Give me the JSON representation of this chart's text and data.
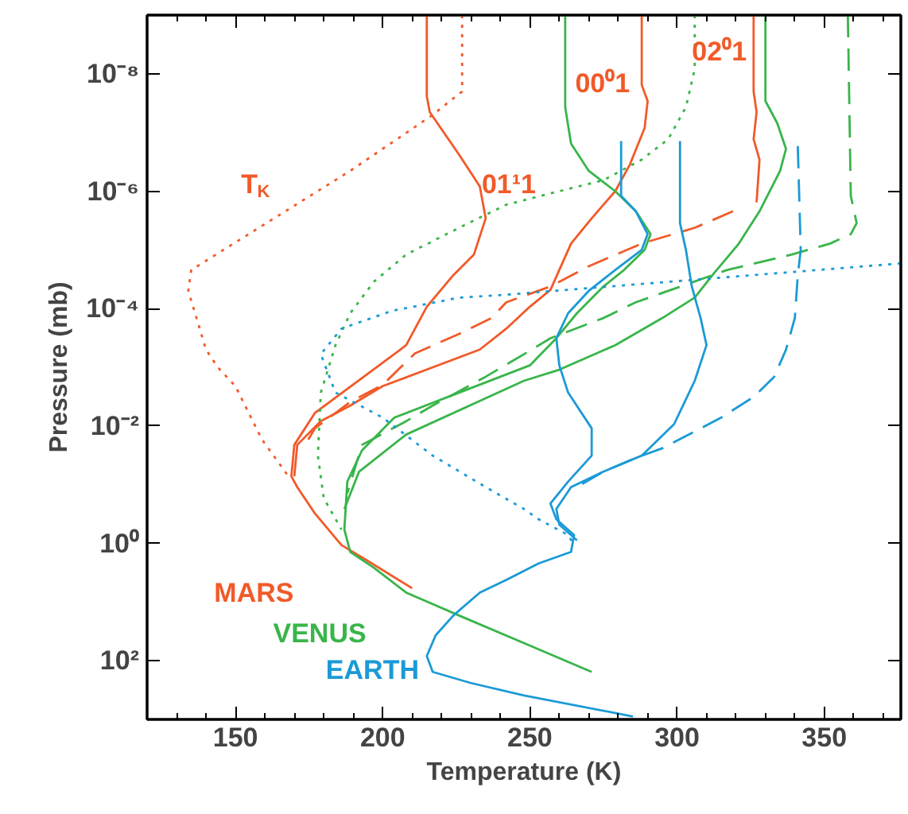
{
  "chart_data": {
    "type": "line",
    "xlabel": "Temperature (K)",
    "ylabel": "Pressure (mb)",
    "xlim": [
      120,
      376
    ],
    "xticks": [
      150,
      200,
      250,
      300,
      350
    ],
    "ylim": [
      1000,
      1e-09
    ],
    "log": "y",
    "yticks": [
      {
        "value": 1e-08,
        "label": "10⁻⁸"
      },
      {
        "value": 1e-06,
        "label": "10⁻⁶"
      },
      {
        "value": 0.0001,
        "label": "10⁻⁴"
      },
      {
        "value": 0.01,
        "label": "10⁻²"
      },
      {
        "value": 1,
        "label": "10⁰"
      },
      {
        "value": 100,
        "label": "10²"
      }
    ],
    "grid": false,
    "marker": "none",
    "series": [
      {
        "color": "#f15a29",
        "line_style": "dotted",
        "x": [
          227,
          227,
          217,
          189,
          135,
          134,
          140,
          144,
          150,
          159,
          168
        ],
        "values": [
          1e-09,
          2e-08,
          5e-08,
          4.5e-07,
          2.2e-05,
          5e-05,
          0.0005,
          0.001,
          0.0021,
          0.017,
          0.072
        ]
      },
      {
        "color": "#f15a29",
        "line_style": "solid",
        "x": [
          215,
          215,
          216,
          226,
          233,
          235,
          231,
          224,
          215,
          208,
          206,
          177,
          170,
          169,
          171,
          177,
          186,
          195,
          210
        ],
        "values": [
          1e-09,
          2.4e-08,
          4.5e-08,
          2.4e-07,
          8.3e-07,
          2.9e-06,
          1.2e-05,
          2.7e-05,
          9.3e-05,
          0.00042,
          0.0005,
          0.006,
          0.021,
          0.072,
          0.11,
          0.31,
          1.07,
          2.0,
          5.8
        ]
      },
      {
        "color": "#f15a29",
        "line_style": "solid",
        "x": [
          288,
          288,
          290,
          289,
          284,
          279,
          271,
          264,
          260,
          257,
          250,
          242,
          233,
          200,
          189,
          179,
          171,
          170
        ],
        "values": [
          1e-09,
          1.55e-08,
          2.9e-08,
          8.3e-08,
          3.5e-07,
          1e-06,
          2.9e-06,
          7.8e-06,
          2.2e-05,
          4.8e-05,
          9.3e-05,
          0.00022,
          0.0005,
          0.0021,
          0.0045,
          0.0083,
          0.021,
          0.072
        ]
      },
      {
        "color": "#f15a29",
        "line_style": "solid",
        "x": [
          326,
          326,
          327,
          326,
          328,
          327
        ],
        "values": [
          1e-09,
          2e-08,
          4.5e-08,
          1.3e-07,
          2.9e-07,
          1.55e-06
        ]
      },
      {
        "color": "#f15a29",
        "line_style": "dashed",
        "x": [
          319,
          306,
          288,
          270,
          257,
          242,
          237,
          226,
          211,
          200,
          189,
          177,
          173
        ],
        "values": [
          2.2e-06,
          4.2e-06,
          7.8e-06,
          1.9e-05,
          4.2e-05,
          7.8e-05,
          0.000145,
          0.00027,
          0.00058,
          0.002,
          0.0039,
          0.011,
          0.024
        ]
      },
      {
        "color": "#39b54a",
        "line_style": "solid",
        "x": [
          262,
          262,
          264,
          270,
          279,
          286,
          291,
          289,
          282,
          275,
          266,
          259,
          250,
          226,
          204,
          193,
          188,
          187,
          189,
          197,
          208,
          226,
          248,
          271
        ],
        "values": [
          1e-09,
          3.7e-08,
          1.55e-07,
          4.5e-07,
          1e-06,
          2.2e-06,
          5.4e-06,
          1e-05,
          2.2e-05,
          4.2e-05,
          0.00012,
          0.00032,
          0.00093,
          0.0027,
          0.0072,
          0.026,
          0.089,
          0.58,
          1.4,
          2.6,
          6.9,
          17,
          50,
          155
        ]
      },
      {
        "color": "#39b54a",
        "line_style": "solid",
        "x": [
          330,
          330,
          334,
          337,
          335,
          328,
          321,
          312,
          306,
          295,
          279,
          260,
          248,
          208,
          192,
          187
        ],
        "values": [
          1e-09,
          2.9e-08,
          6.9e-08,
          1.9e-07,
          4.5e-07,
          2.2e-06,
          7.8e-06,
          2.7e-05,
          6.5e-05,
          0.000145,
          0.00042,
          0.0011,
          0.0017,
          0.014,
          0.06,
          0.26
        ]
      },
      {
        "color": "#39b54a",
        "line_style": "dashed",
        "x": [
          358,
          359,
          361,
          359,
          352,
          339,
          317,
          297,
          286,
          275,
          257,
          248,
          235,
          217,
          208,
          193,
          188
        ],
        "values": [
          1e-09,
          1.2e-06,
          3.5e-06,
          5.4e-06,
          7.8e-06,
          1.2e-05,
          2.2e-05,
          5e-05,
          7.8e-05,
          0.000145,
          0.00032,
          0.0006,
          0.00145,
          0.0045,
          0.0083,
          0.021,
          0.14
        ]
      },
      {
        "color": "#39b54a",
        "line_style": "dotted",
        "x": [
          306,
          306,
          303,
          297,
          288,
          275,
          260,
          242,
          226,
          208,
          197,
          189,
          184,
          179,
          178,
          180,
          186
        ],
        "values": [
          1e-09,
          8.3e-09,
          3.7e-08,
          1.3e-07,
          2.9e-07,
          6.5e-07,
          1e-06,
          1.7e-06,
          4.2e-06,
          1.2e-05,
          3.5e-05,
          0.00012,
          0.00042,
          0.0027,
          0.032,
          0.17,
          0.58
        ]
      },
      {
        "color": "#1b9ad6",
        "line_style": "solid",
        "x": [
          281,
          281,
          286,
          290,
          288,
          279,
          270,
          263,
          259,
          260,
          263,
          271,
          271,
          263,
          257,
          259,
          265,
          264,
          253,
          242,
          233,
          224,
          218,
          215,
          217,
          230,
          248,
          285
        ],
        "values": [
          1.4e-07,
          1.2e-06,
          2.2e-06,
          5.4e-06,
          1e-05,
          2.2e-05,
          5e-05,
          0.00012,
          0.00032,
          0.00093,
          0.0027,
          0.011,
          0.032,
          0.089,
          0.21,
          0.39,
          0.72,
          1.4,
          2.2,
          4.2,
          6.9,
          17,
          37,
          83,
          155,
          240,
          390,
          890
        ]
      },
      {
        "color": "#1b9ad6",
        "line_style": "solid",
        "x": [
          301,
          301,
          303,
          305,
          308,
          310,
          306,
          299,
          288,
          275,
          264,
          259,
          260,
          266
        ],
        "values": [
          1.4e-07,
          3.5e-06,
          1e-05,
          4.2e-05,
          0.000145,
          0.00042,
          0.0017,
          0.0093,
          0.032,
          0.06,
          0.11,
          0.26,
          0.48,
          0.89
        ]
      },
      {
        "color": "#1b9ad6",
        "line_style": "dashed",
        "x": [
          341,
          342,
          341,
          340,
          337,
          333,
          326,
          315,
          308,
          295,
          286,
          275,
          266
        ],
        "values": [
          1.7e-07,
          1e-05,
          2.7e-05,
          0.000145,
          0.0005,
          0.00145,
          0.0032,
          0.0072,
          0.011,
          0.024,
          0.035,
          0.06,
          0.11
        ]
      },
      {
        "color": "#1b9ad6",
        "line_style": "dotted",
        "x": [
          376,
          242,
          226,
          203,
          186,
          179,
          184,
          200,
          217,
          235,
          248,
          253,
          263,
          265
        ],
        "values": [
          1.7e-05,
          5.8e-05,
          6.5e-05,
          0.00011,
          0.00022,
          0.0006,
          0.0027,
          0.0072,
          0.032,
          0.11,
          0.26,
          0.39,
          0.72,
          1.07
        ]
      }
    ],
    "annotations": [
      "T$_{K}$",
      "01¹1",
      "00⁰1",
      "02⁰1",
      "MARS",
      "VENUS",
      "EARTH"
    ]
  }
}
